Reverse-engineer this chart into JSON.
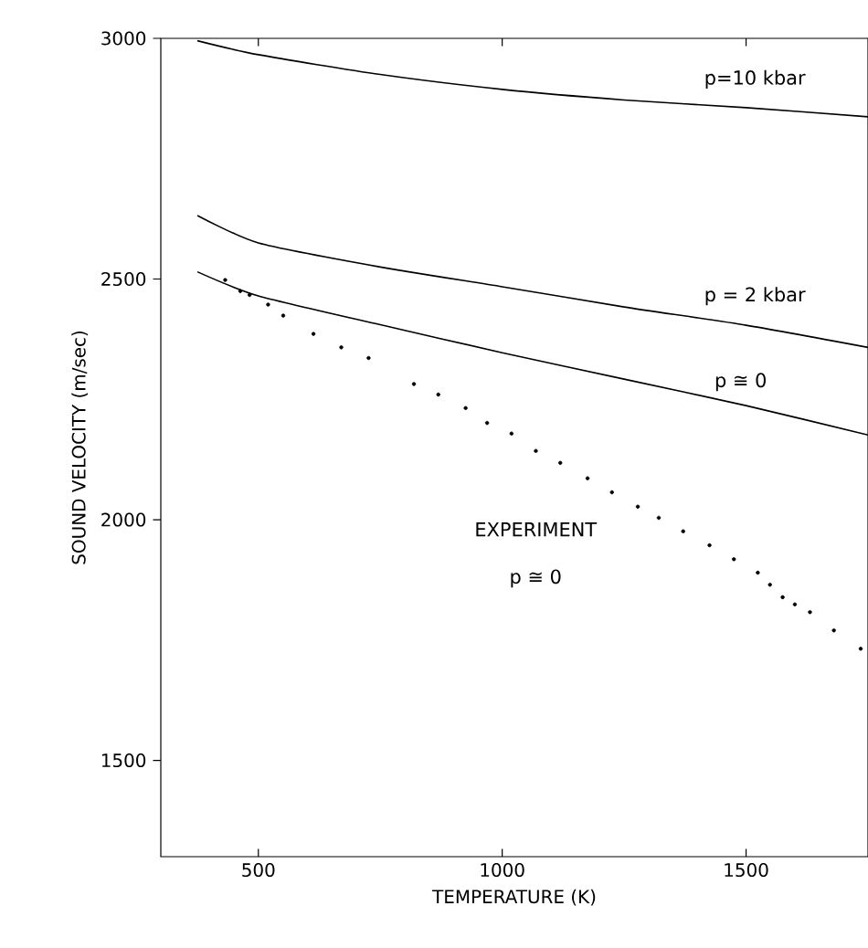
{
  "chart_data": {
    "type": "line",
    "xlabel": "TEMPERATURE (K)",
    "ylabel": "SOUND VELOCITY (m/sec)",
    "xlim": [
      300,
      1750
    ],
    "ylim": [
      1300,
      3000
    ],
    "xticks": [
      500,
      1000,
      1500
    ],
    "yticks": [
      1500,
      2000,
      2500,
      3000
    ],
    "series": [
      {
        "color": "#000000",
        "x": [
          375,
          500,
          750,
          1000,
          1250,
          1500,
          1750
        ],
        "values": [
          2995,
          2966,
          2925,
          2894,
          2872,
          2856,
          2837
        ]
      },
      {
        "color": "#000000",
        "x": [
          375,
          500,
          750,
          1000,
          1250,
          1500,
          1750
        ],
        "values": [
          2632,
          2575,
          2525,
          2484,
          2442,
          2404,
          2358
        ]
      },
      {
        "color": "#000000",
        "x": [
          375,
          500,
          750,
          1000,
          1250,
          1500,
          1750
        ],
        "values": [
          2515,
          2465,
          2405,
          2347,
          2292,
          2237,
          2176
        ]
      },
      {
        "type": "scatter",
        "color": "#000000",
        "marker": "circle",
        "x": [
          432,
          463,
          482,
          520,
          551,
          613,
          670,
          726,
          819,
          869,
          925,
          969,
          1019,
          1069,
          1119,
          1175,
          1225,
          1278,
          1321,
          1371,
          1425,
          1475,
          1524,
          1549,
          1575,
          1600,
          1631,
          1680,
          1735
        ],
        "values": [
          2498,
          2475,
          2467,
          2447,
          2424,
          2386,
          2358,
          2336,
          2282,
          2260,
          2232,
          2201,
          2179,
          2143,
          2118,
          2086,
          2057,
          2027,
          2004,
          1976,
          1947,
          1918,
          1890,
          1865,
          1839,
          1824,
          1808,
          1770,
          1732
        ]
      }
    ],
    "annotations": [
      "p=10 kbar",
      "p = 2 kbar",
      "p ≅ 0",
      "EXPERIMENT",
      "p ≅ 0"
    ]
  }
}
